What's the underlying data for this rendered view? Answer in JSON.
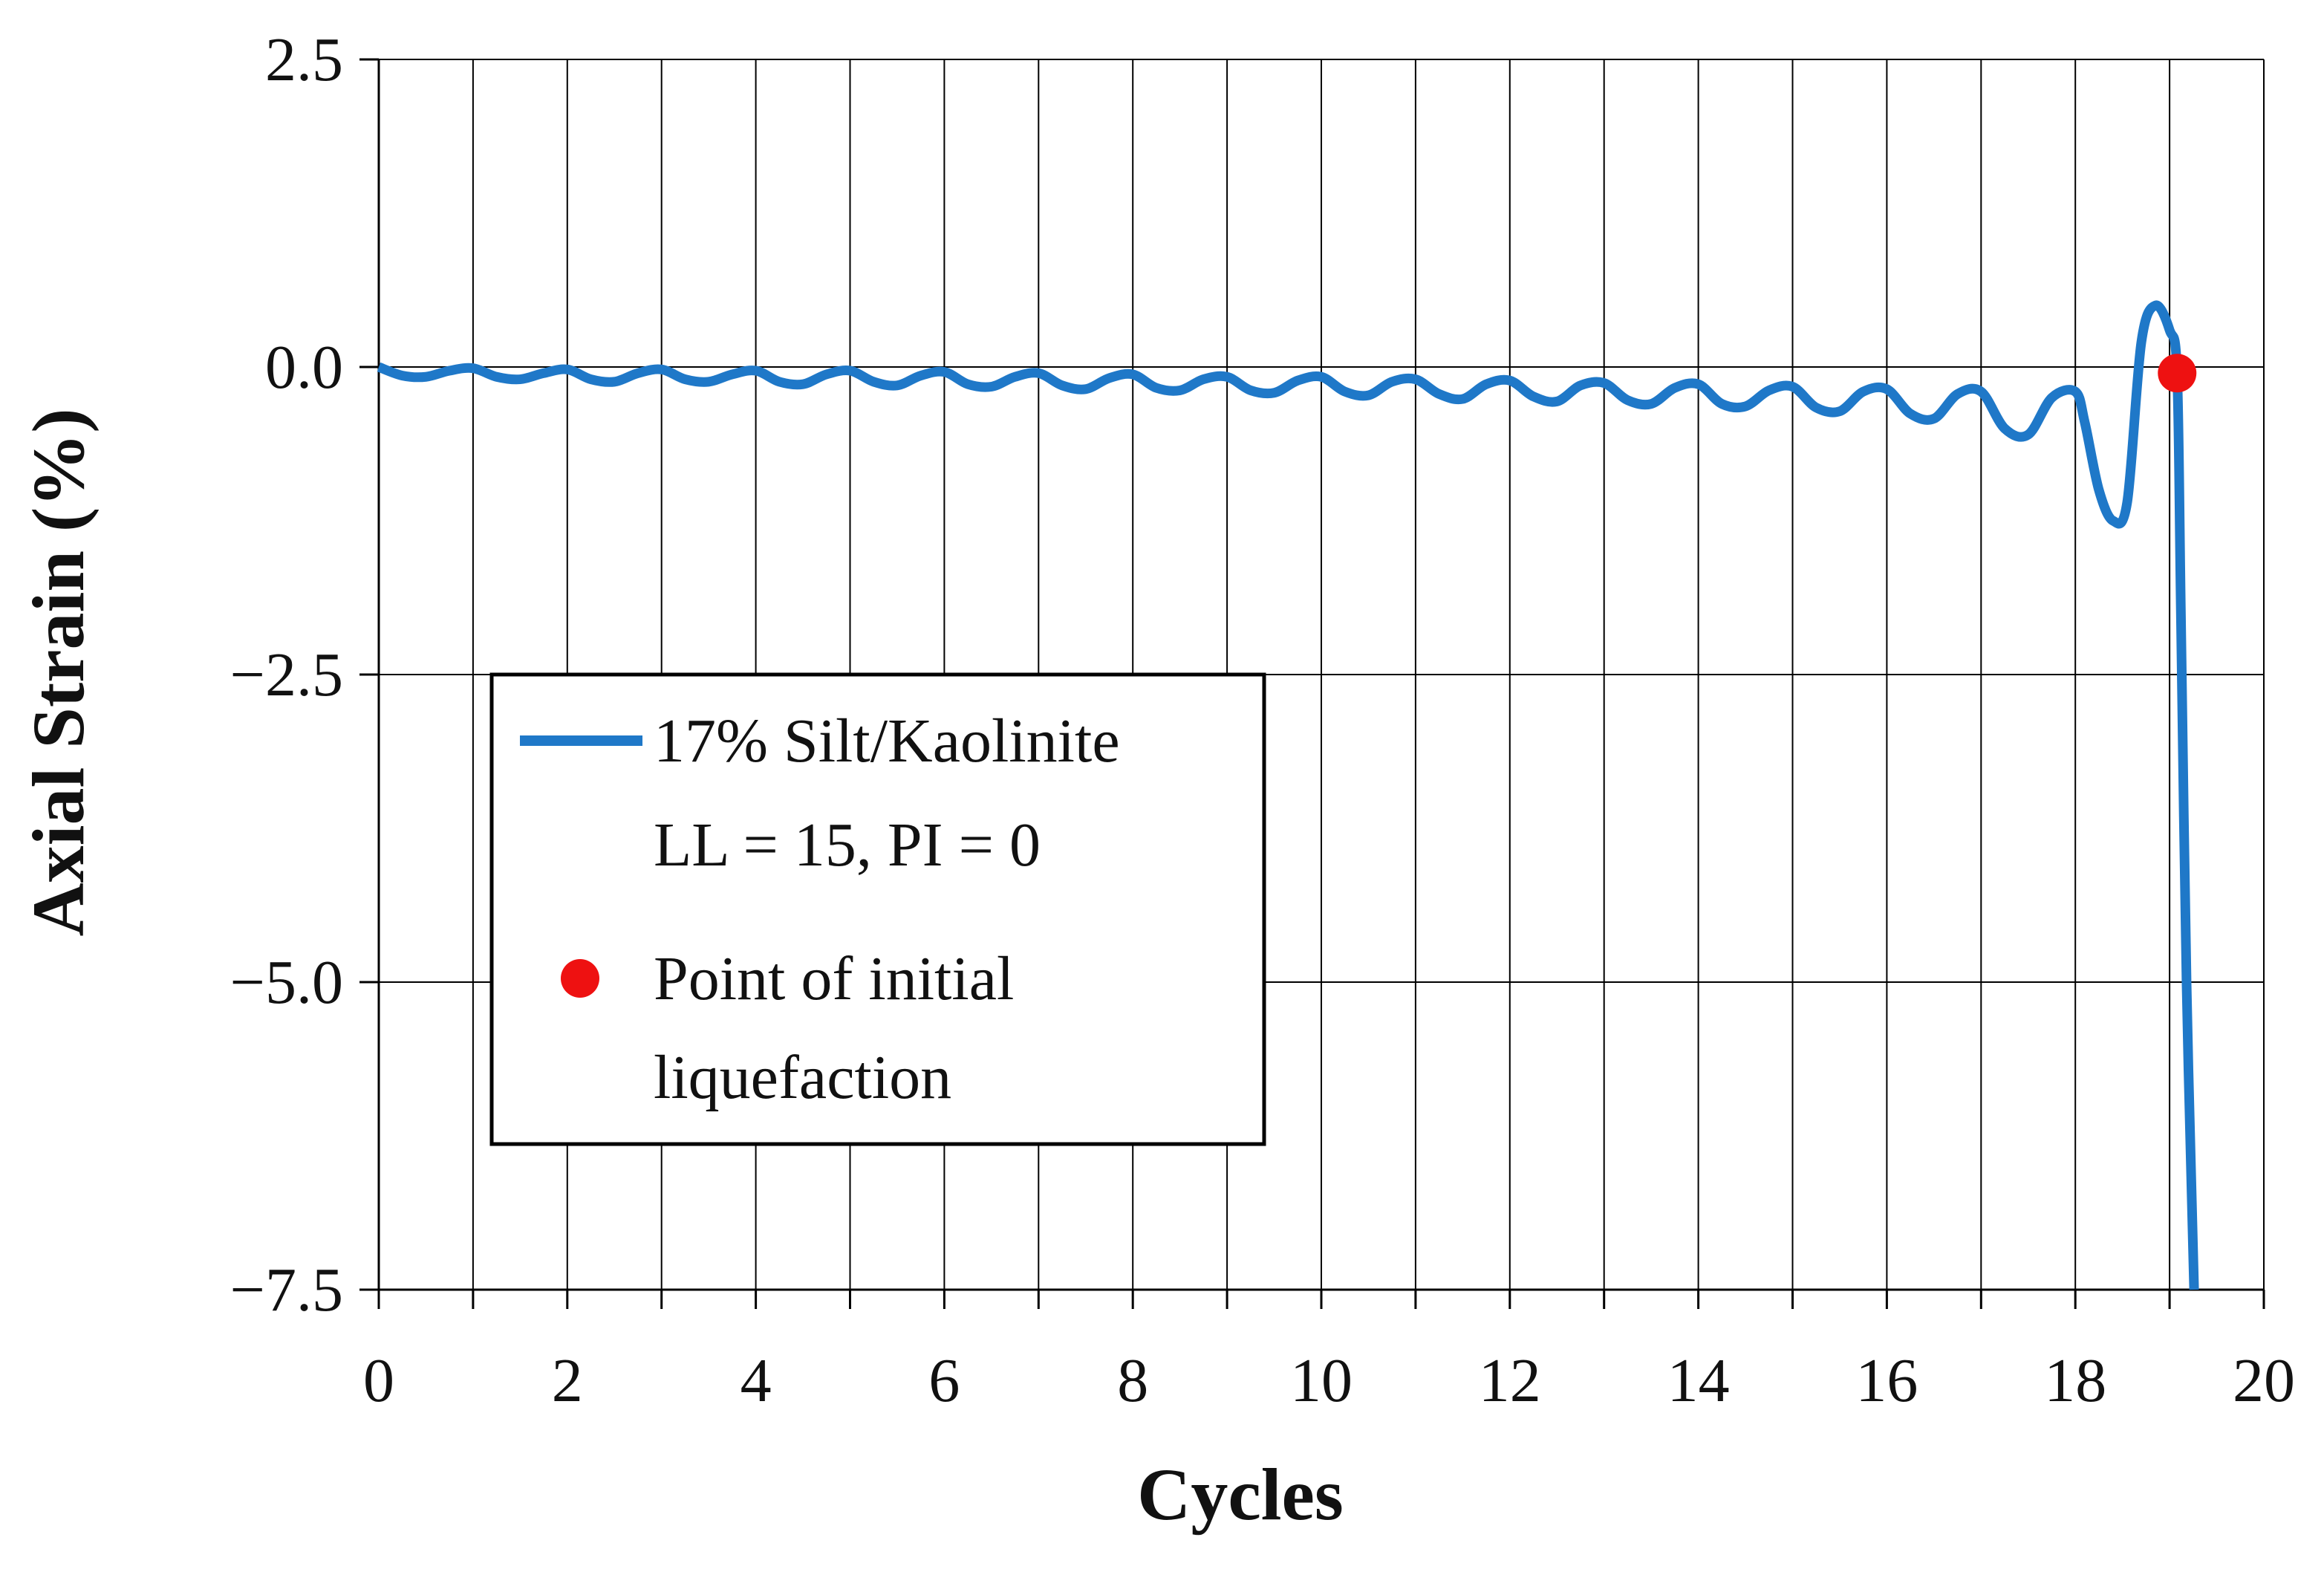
{
  "chart_data": {
    "type": "line",
    "title": "",
    "xlabel": "Cycles",
    "ylabel": "Axial Strain (%)",
    "xlim": [
      0,
      20
    ],
    "ylim": [
      -7.5,
      2.5
    ],
    "grid": true,
    "x_ticks": [
      0,
      2,
      4,
      6,
      8,
      10,
      12,
      14,
      16,
      18,
      20
    ],
    "x_tick_labels": [
      "0",
      "2",
      "4",
      "6",
      "8",
      "10",
      "12",
      "14",
      "16",
      "18",
      "20"
    ],
    "x_gridlines": [
      1,
      2,
      3,
      4,
      5,
      6,
      7,
      8,
      9,
      10,
      11,
      12,
      13,
      14,
      15,
      16,
      17,
      18,
      19,
      20
    ],
    "y_ticks": [
      2.5,
      0.0,
      -2.5,
      -5.0,
      -7.5
    ],
    "y_tick_labels": [
      "2.5",
      "0.0",
      "−2.5",
      "−5.0",
      "−7.5"
    ],
    "series": [
      {
        "name": "17% Silt/Kaolinite LL = 15, PI = 0",
        "color": "#1f78c8",
        "x": [
          0,
          0.25,
          0.5,
          0.75,
          1.0,
          1.25,
          1.5,
          1.75,
          2.0,
          2.25,
          2.5,
          2.75,
          3.0,
          3.25,
          3.5,
          3.75,
          4.0,
          4.25,
          4.5,
          4.75,
          5.0,
          5.25,
          5.5,
          5.75,
          6.0,
          6.25,
          6.5,
          6.75,
          7.0,
          7.25,
          7.5,
          7.75,
          8.0,
          8.25,
          8.5,
          8.75,
          9.0,
          9.25,
          9.5,
          9.75,
          10.0,
          10.25,
          10.5,
          10.75,
          11.0,
          11.25,
          11.5,
          11.75,
          12.0,
          12.25,
          12.5,
          12.75,
          13.0,
          13.25,
          13.5,
          13.75,
          14.0,
          14.25,
          14.5,
          14.75,
          15.0,
          15.25,
          15.5,
          15.75,
          16.0,
          16.25,
          16.5,
          16.75,
          17.0,
          17.25,
          17.5,
          17.75,
          18.0,
          18.1,
          18.25,
          18.4,
          18.55,
          18.7,
          18.85,
          19.0,
          19.08,
          19.12,
          19.18,
          19.26
        ],
        "y": [
          0.0,
          -0.07,
          -0.08,
          -0.03,
          -0.01,
          -0.08,
          -0.1,
          -0.05,
          -0.02,
          -0.1,
          -0.12,
          -0.05,
          -0.02,
          -0.1,
          -0.12,
          -0.06,
          -0.03,
          -0.12,
          -0.14,
          -0.06,
          -0.03,
          -0.12,
          -0.15,
          -0.07,
          -0.04,
          -0.14,
          -0.16,
          -0.08,
          -0.05,
          -0.15,
          -0.18,
          -0.09,
          -0.06,
          -0.17,
          -0.19,
          -0.1,
          -0.08,
          -0.19,
          -0.21,
          -0.11,
          -0.08,
          -0.2,
          -0.23,
          -0.12,
          -0.1,
          -0.22,
          -0.26,
          -0.14,
          -0.11,
          -0.24,
          -0.28,
          -0.15,
          -0.13,
          -0.27,
          -0.3,
          -0.17,
          -0.14,
          -0.3,
          -0.32,
          -0.19,
          -0.16,
          -0.33,
          -0.36,
          -0.2,
          -0.18,
          -0.38,
          -0.42,
          -0.22,
          -0.2,
          -0.5,
          -0.55,
          -0.25,
          -0.2,
          -0.45,
          -1.0,
          -1.25,
          -1.1,
          0.2,
          0.5,
          0.3,
          -0.05,
          -2.0,
          -5.0,
          -7.5
        ]
      }
    ],
    "markers": [
      {
        "name": "Point of initial liquefaction",
        "x": 19.08,
        "y": -0.05,
        "color": "#ee1111"
      }
    ]
  },
  "legend": {
    "line_label_1": "17% Silt/Kaolinite",
    "line_label_2": "LL = 15, PI = 0",
    "marker_label_1": "Point of initial",
    "marker_label_2": "liquefaction"
  }
}
